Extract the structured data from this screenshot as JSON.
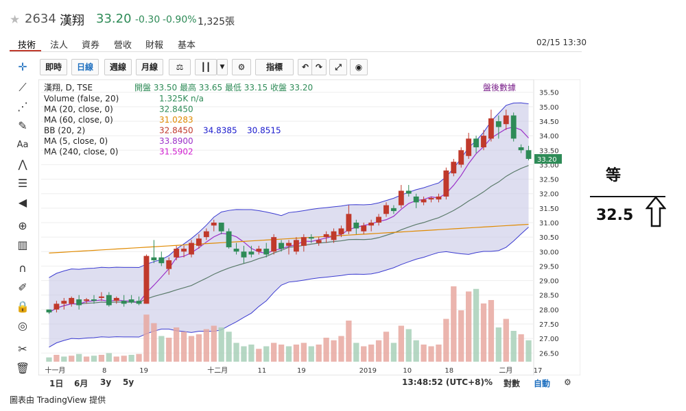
{
  "header": {
    "stock_code": "2634",
    "stock_name": "漢翔",
    "price": "33.20",
    "change": "-0.30",
    "change_pct": "-0.90%",
    "volume": "1,325張",
    "datetime": "02/15 13:30",
    "tabs": [
      "技術",
      "法人",
      "資券",
      "營收",
      "財報",
      "基本"
    ]
  },
  "toolbar": {
    "buttons": [
      "即時",
      "日線",
      "週線",
      "月線"
    ],
    "indicator_label": "指標"
  },
  "legend": {
    "main": "漢翔, D, TSE",
    "ohlc": "開盤 33.50 最高 33.65 最低 33.15 收盤 33.20",
    "after_hours": "盤後數據",
    "rows": [
      {
        "label": "Volume (false, 20)",
        "values": [
          "1.325K n/a"
        ],
        "colors": [
          "#2e8b57"
        ]
      },
      {
        "label": "MA (20, close, 0)",
        "values": [
          "32.8450"
        ],
        "colors": [
          "#2e8b57"
        ]
      },
      {
        "label": "MA (60, close, 0)",
        "values": [
          "31.0283"
        ],
        "colors": [
          "#e08a00"
        ]
      },
      {
        "label": "BB (20, 2)",
        "values": [
          "32.8450",
          "34.8385",
          "30.8515"
        ],
        "colors": [
          "#c0392b",
          "#1a1acd",
          "#1a1acd"
        ]
      },
      {
        "label": "MA (5, close, 0)",
        "values": [
          "33.8900"
        ],
        "colors": [
          "#9b30c8"
        ]
      },
      {
        "label": "MA (240, close, 0)",
        "values": [
          "31.5902"
        ],
        "colors": [
          "#d020d0"
        ]
      }
    ]
  },
  "footer": {
    "ranges": [
      "1日",
      "6月",
      "3y",
      "5y"
    ],
    "clock": "13:48:52 (UTC+8)",
    "pct": "%",
    "log": "對數",
    "auto": "自動",
    "credit": "圖表由 TradingView 提供"
  },
  "annotation": {
    "char": "等",
    "value": "32.5"
  },
  "chart_data": {
    "type": "candlestick",
    "y_ticks": [
      "35.50",
      "35.00",
      "34.50",
      "34.00",
      "33.50",
      "33.00",
      "32.50",
      "32.00",
      "31.50",
      "31.00",
      "30.50",
      "30.00",
      "29.50",
      "29.00",
      "28.50",
      "28.00",
      "27.50",
      "27.00",
      "26.50"
    ],
    "ylim": [
      26.2,
      35.8
    ],
    "last_price_label": "33.20",
    "x_labels": [
      "十一月",
      "8",
      "19",
      "十二月",
      "11",
      "19",
      "2019",
      "10",
      "18",
      "二月",
      "17"
    ],
    "colors": {
      "up": "#c0392b",
      "down": "#2e8b57",
      "bb_fill": "#c8c8e6",
      "bb_line": "#3a3ad0",
      "ma5": "#9b30c8",
      "ma20": "#5a7a6a",
      "ma60": "#e08a00"
    },
    "candles": [
      [
        28.0,
        28.0,
        27.85,
        27.9
      ],
      [
        28.0,
        28.3,
        27.9,
        28.2
      ],
      [
        28.2,
        28.4,
        28.0,
        28.3
      ],
      [
        28.2,
        28.45,
        28.1,
        28.4
      ],
      [
        28.35,
        28.5,
        28.0,
        28.15
      ],
      [
        28.3,
        28.4,
        28.2,
        28.35
      ],
      [
        28.35,
        28.5,
        28.2,
        28.3
      ],
      [
        28.4,
        28.6,
        28.3,
        28.45
      ],
      [
        28.5,
        28.6,
        28.1,
        28.15
      ],
      [
        28.3,
        28.45,
        28.2,
        28.4
      ],
      [
        28.3,
        28.5,
        28.1,
        28.2
      ],
      [
        28.35,
        28.5,
        28.2,
        28.25
      ],
      [
        28.3,
        28.45,
        28.15,
        28.2
      ],
      [
        28.2,
        29.9,
        28.2,
        29.85
      ],
      [
        29.8,
        30.4,
        29.6,
        29.7
      ],
      [
        29.8,
        30.0,
        29.5,
        29.6
      ],
      [
        29.4,
        29.8,
        29.2,
        29.7
      ],
      [
        29.8,
        30.2,
        29.7,
        30.1
      ],
      [
        30.0,
        30.2,
        29.8,
        30.1
      ],
      [
        29.9,
        30.4,
        29.8,
        30.3
      ],
      [
        30.2,
        30.6,
        30.1,
        30.45
      ],
      [
        30.5,
        30.8,
        30.4,
        30.7
      ],
      [
        30.9,
        31.1,
        30.7,
        31.0
      ],
      [
        31.0,
        31.0,
        30.6,
        30.7
      ],
      [
        30.7,
        30.8,
        30.1,
        30.15
      ],
      [
        30.1,
        30.3,
        29.9,
        30.0
      ],
      [
        30.0,
        30.2,
        29.6,
        29.8
      ],
      [
        30.0,
        30.2,
        29.8,
        29.9
      ],
      [
        30.0,
        30.2,
        29.9,
        30.1
      ],
      [
        30.1,
        30.3,
        29.8,
        29.9
      ],
      [
        30.0,
        30.6,
        29.9,
        30.5
      ],
      [
        30.3,
        30.4,
        30.0,
        30.1
      ],
      [
        30.2,
        30.4,
        29.9,
        30.3
      ],
      [
        30.0,
        30.5,
        29.9,
        30.4
      ],
      [
        30.2,
        30.6,
        30.0,
        30.5
      ],
      [
        30.5,
        30.6,
        30.3,
        30.45
      ],
      [
        30.3,
        30.5,
        30.2,
        30.4
      ],
      [
        30.5,
        30.7,
        30.3,
        30.6
      ],
      [
        30.4,
        30.8,
        30.3,
        30.7
      ],
      [
        30.6,
        30.9,
        30.5,
        30.8
      ],
      [
        30.7,
        31.6,
        30.6,
        31.3
      ],
      [
        31.0,
        31.1,
        30.6,
        30.8
      ],
      [
        30.7,
        31.0,
        30.6,
        30.9
      ],
      [
        30.9,
        31.1,
        30.7,
        31.0
      ],
      [
        31.0,
        31.3,
        30.9,
        31.2
      ],
      [
        31.3,
        31.7,
        31.2,
        31.6
      ],
      [
        31.5,
        31.6,
        31.3,
        31.4
      ],
      [
        31.6,
        32.3,
        31.5,
        32.1
      ],
      [
        32.1,
        32.3,
        31.9,
        32.0
      ],
      [
        31.9,
        32.0,
        31.5,
        31.7
      ],
      [
        31.7,
        31.9,
        31.6,
        31.8
      ],
      [
        31.8,
        31.9,
        31.7,
        31.85
      ],
      [
        31.8,
        32.0,
        31.7,
        31.9
      ],
      [
        31.9,
        32.9,
        31.8,
        32.8
      ],
      [
        32.7,
        33.2,
        32.6,
        33.1
      ],
      [
        33.0,
        33.6,
        32.9,
        33.5
      ],
      [
        33.3,
        34.1,
        33.2,
        33.9
      ],
      [
        33.9,
        34.0,
        33.4,
        33.6
      ],
      [
        33.6,
        34.2,
        33.5,
        34.0
      ],
      [
        33.9,
        34.9,
        33.8,
        34.6
      ],
      [
        34.5,
        34.7,
        33.9,
        34.3
      ],
      [
        34.4,
        34.9,
        34.2,
        34.7
      ],
      [
        34.7,
        34.8,
        33.8,
        33.9
      ],
      [
        33.6,
        33.7,
        33.4,
        33.5
      ],
      [
        33.5,
        33.65,
        33.15,
        33.2
      ]
    ],
    "volume": [
      [
        5,
        0
      ],
      [
        8,
        1
      ],
      [
        6,
        0
      ],
      [
        7,
        1
      ],
      [
        9,
        0
      ],
      [
        6,
        1
      ],
      [
        7,
        0
      ],
      [
        8,
        1
      ],
      [
        10,
        0
      ],
      [
        6,
        1
      ],
      [
        7,
        1
      ],
      [
        8,
        0
      ],
      [
        9,
        1
      ],
      [
        55,
        1
      ],
      [
        45,
        1
      ],
      [
        30,
        0
      ],
      [
        28,
        1
      ],
      [
        40,
        1
      ],
      [
        35,
        1
      ],
      [
        30,
        1
      ],
      [
        32,
        1
      ],
      [
        38,
        1
      ],
      [
        42,
        1
      ],
      [
        40,
        0
      ],
      [
        35,
        0
      ],
      [
        22,
        0
      ],
      [
        18,
        0
      ],
      [
        20,
        0
      ],
      [
        15,
        1
      ],
      [
        18,
        0
      ],
      [
        22,
        1
      ],
      [
        20,
        1
      ],
      [
        18,
        0
      ],
      [
        20,
        1
      ],
      [
        22,
        1
      ],
      [
        18,
        0
      ],
      [
        20,
        1
      ],
      [
        28,
        1
      ],
      [
        25,
        1
      ],
      [
        30,
        1
      ],
      [
        48,
        1
      ],
      [
        22,
        0
      ],
      [
        18,
        1
      ],
      [
        20,
        1
      ],
      [
        25,
        1
      ],
      [
        35,
        1
      ],
      [
        22,
        0
      ],
      [
        42,
        1
      ],
      [
        38,
        0
      ],
      [
        25,
        0
      ],
      [
        20,
        1
      ],
      [
        18,
        1
      ],
      [
        20,
        1
      ],
      [
        50,
        1
      ],
      [
        88,
        1
      ],
      [
        60,
        1
      ],
      [
        82,
        1
      ],
      [
        85,
        0
      ],
      [
        68,
        1
      ],
      [
        72,
        1
      ],
      [
        40,
        0
      ],
      [
        50,
        1
      ],
      [
        36,
        0
      ],
      [
        32,
        1
      ],
      [
        25,
        0
      ]
    ]
  }
}
